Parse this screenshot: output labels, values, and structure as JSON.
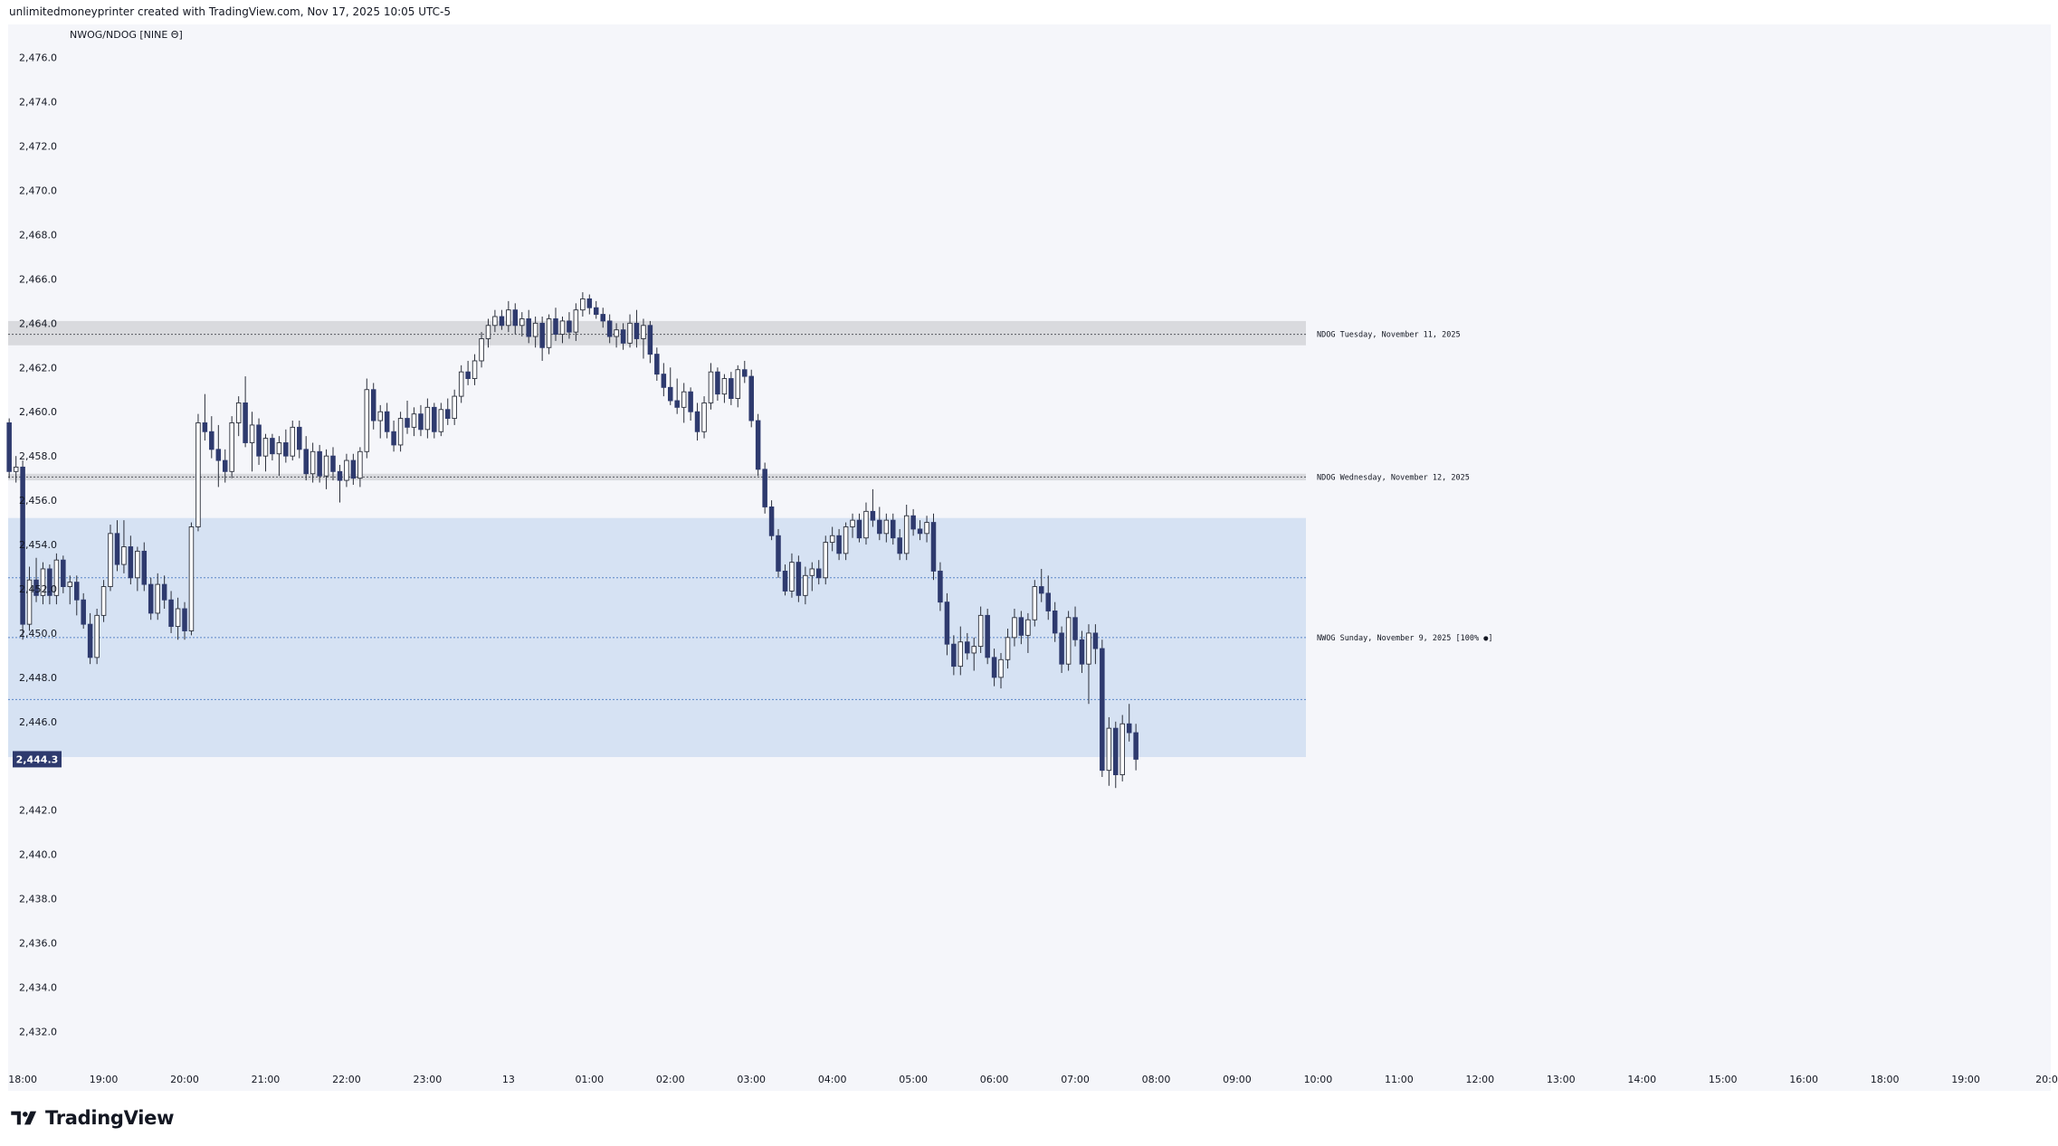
{
  "header": {
    "caption": "unlimitedmoneyprinter created with TradingView.com, Nov 17, 2025 10:05 UTC-5"
  },
  "footer": {
    "brand": "TradingView"
  },
  "colors": {
    "bear_body": "#2e3a6e",
    "bull_body": "#ffffff",
    "wick": "#2b2f3a",
    "zone_fill": "#d6e2f3",
    "gap_fill": "#d9dade",
    "level_line": "#5b86c8",
    "price_tag": "#2e3a6e"
  },
  "chart_data": {
    "type": "candlestick",
    "title": "NWOG/NDOG [NINE Θ]",
    "ylim": [
      2430.3,
      2477.5
    ],
    "y_ticks": [
      2476.0,
      2474.0,
      2472.0,
      2470.0,
      2468.0,
      2466.0,
      2464.0,
      2462.0,
      2460.0,
      2458.0,
      2456.0,
      2454.0,
      2452.0,
      2450.0,
      2448.0,
      2446.0,
      2442.0,
      2440.0,
      2438.0,
      2436.0,
      2434.0,
      2432.0
    ],
    "y_tick_labels": [
      "2,476.0",
      "2,474.0",
      "2,472.0",
      "2,470.0",
      "2,468.0",
      "2,466.0",
      "2,464.0",
      "2,462.0",
      "2,460.0",
      "2,458.0",
      "2,456.0",
      "2,454.0",
      "2,452.0",
      "2,450.0",
      "2,448.0",
      "2,446.0",
      "2,442.0",
      "2,440.0",
      "2,438.0",
      "2,436.0",
      "2,434.0",
      "2,432.0"
    ],
    "x_ticks": [
      0,
      1,
      2,
      3,
      4,
      5,
      6,
      7,
      8,
      9,
      10,
      11,
      12,
      13,
      14,
      15,
      16,
      17,
      18,
      19,
      20,
      21,
      22,
      23,
      24,
      25
    ],
    "x_tick_labels": [
      "18:00",
      "19:00",
      "20:00",
      "21:00",
      "22:00",
      "23:00",
      "13",
      "01:00",
      "02:00",
      "03:00",
      "04:00",
      "05:00",
      "06:00",
      "07:00",
      "08:00",
      "09:00",
      "10:00",
      "11:00",
      "12:00",
      "13:00",
      "14:00",
      "15:00",
      "16:00",
      "18:00",
      "19:00",
      "20:0"
    ],
    "x_range": [
      -0.18,
      25.05
    ],
    "candle_width_hours": 0.0833,
    "last_price": 2444.3,
    "last_price_label": "2,444.3",
    "zones": [
      {
        "kind": "gap",
        "label": "NDOG Tuesday, November 11, 2025",
        "top": 2464.1,
        "bottom": 2463.0,
        "mid": 2463.5,
        "x_start": -0.18,
        "x_end": 15.85
      },
      {
        "kind": "gap",
        "label": "NDOG Wednesday, November 12, 2025",
        "top": 2457.2,
        "bottom": 2456.9,
        "mid": 2457.05,
        "x_start": -0.18,
        "x_end": 15.85
      },
      {
        "kind": "weekly",
        "label": "NWOG Sunday, November 9, 2025 [100% ●]",
        "top": 2455.2,
        "bottom": 2444.4,
        "levels": [
          2452.5,
          2449.8,
          2447.0
        ],
        "x_start": -0.18,
        "x_end": 15.85
      }
    ],
    "candles": [
      [
        -0.167,
        2459.5,
        2459.7,
        2457.0,
        2457.3
      ],
      [
        -0.083,
        2457.3,
        2458.0,
        2456.8,
        2457.5
      ],
      [
        0.0,
        2457.5,
        2457.8,
        2449.7,
        2450.4
      ],
      [
        0.083,
        2450.4,
        2453.0,
        2450.1,
        2452.4
      ],
      [
        0.167,
        2452.4,
        2453.4,
        2451.4,
        2451.7
      ],
      [
        0.25,
        2451.7,
        2453.2,
        2451.3,
        2452.9
      ],
      [
        0.333,
        2452.9,
        2453.1,
        2451.3,
        2451.7
      ],
      [
        0.417,
        2451.7,
        2453.6,
        2451.3,
        2453.3
      ],
      [
        0.5,
        2453.3,
        2453.5,
        2451.8,
        2452.1
      ],
      [
        0.583,
        2452.1,
        2452.6,
        2451.3,
        2452.3
      ],
      [
        0.667,
        2452.3,
        2452.6,
        2450.8,
        2451.5
      ],
      [
        0.75,
        2451.5,
        2451.8,
        2450.2,
        2450.4
      ],
      [
        0.833,
        2450.4,
        2450.9,
        2448.6,
        2448.9
      ],
      [
        0.917,
        2448.9,
        2451.1,
        2448.6,
        2450.8
      ],
      [
        1.0,
        2450.8,
        2452.4,
        2450.5,
        2452.1
      ],
      [
        1.083,
        2452.1,
        2454.9,
        2451.9,
        2454.5
      ],
      [
        1.167,
        2454.5,
        2455.1,
        2452.8,
        2453.1
      ],
      [
        1.25,
        2453.1,
        2455.1,
        2452.7,
        2453.9
      ],
      [
        1.333,
        2453.9,
        2454.4,
        2452.2,
        2452.5
      ],
      [
        1.417,
        2452.5,
        2453.9,
        2451.9,
        2453.7
      ],
      [
        1.5,
        2453.7,
        2454.1,
        2451.9,
        2452.2
      ],
      [
        1.583,
        2452.2,
        2452.5,
        2450.6,
        2450.9
      ],
      [
        1.667,
        2450.9,
        2452.7,
        2450.6,
        2452.2
      ],
      [
        1.75,
        2452.2,
        2452.6,
        2451.1,
        2451.5
      ],
      [
        1.833,
        2451.5,
        2451.9,
        2450.0,
        2450.3
      ],
      [
        1.917,
        2450.3,
        2451.6,
        2449.7,
        2451.1
      ],
      [
        2.0,
        2451.1,
        2451.4,
        2449.7,
        2450.1
      ],
      [
        2.083,
        2450.1,
        2455.0,
        2449.9,
        2454.8
      ],
      [
        2.167,
        2454.8,
        2459.9,
        2454.6,
        2459.5
      ],
      [
        2.25,
        2459.5,
        2460.8,
        2458.7,
        2459.1
      ],
      [
        2.333,
        2459.1,
        2459.8,
        2457.9,
        2458.3
      ],
      [
        2.417,
        2458.3,
        2459.4,
        2456.6,
        2457.8
      ],
      [
        2.5,
        2457.8,
        2458.3,
        2456.8,
        2457.3
      ],
      [
        2.583,
        2457.3,
        2459.8,
        2457.0,
        2459.5
      ],
      [
        2.667,
        2459.5,
        2460.7,
        2458.9,
        2460.4
      ],
      [
        2.75,
        2460.4,
        2461.6,
        2458.4,
        2458.6
      ],
      [
        2.833,
        2458.6,
        2460.0,
        2457.3,
        2459.4
      ],
      [
        2.917,
        2459.4,
        2459.7,
        2457.6,
        2458.0
      ],
      [
        3.0,
        2458.0,
        2459.0,
        2457.3,
        2458.8
      ],
      [
        3.083,
        2458.8,
        2459.0,
        2457.8,
        2458.1
      ],
      [
        3.167,
        2458.1,
        2458.9,
        2457.1,
        2458.6
      ],
      [
        3.25,
        2458.6,
        2459.2,
        2457.7,
        2458.0
      ],
      [
        3.333,
        2458.0,
        2459.6,
        2457.8,
        2459.3
      ],
      [
        3.417,
        2459.3,
        2459.6,
        2457.9,
        2458.3
      ],
      [
        3.5,
        2458.3,
        2458.9,
        2456.9,
        2457.2
      ],
      [
        3.583,
        2457.2,
        2458.6,
        2456.8,
        2458.2
      ],
      [
        3.667,
        2458.2,
        2458.5,
        2456.8,
        2457.1
      ],
      [
        3.75,
        2457.1,
        2458.3,
        2456.5,
        2458.0
      ],
      [
        3.833,
        2458.0,
        2458.4,
        2456.9,
        2457.3
      ],
      [
        3.917,
        2457.3,
        2457.6,
        2455.9,
        2456.9
      ],
      [
        4.0,
        2456.9,
        2458.1,
        2456.6,
        2457.8
      ],
      [
        4.083,
        2457.8,
        2458.1,
        2456.7,
        2457.0
      ],
      [
        4.167,
        2457.0,
        2458.4,
        2456.6,
        2458.2
      ],
      [
        4.25,
        2458.2,
        2461.5,
        2457.9,
        2461.0
      ],
      [
        4.333,
        2461.0,
        2461.3,
        2459.2,
        2459.6
      ],
      [
        4.417,
        2459.6,
        2460.3,
        2458.8,
        2460.0
      ],
      [
        4.5,
        2460.0,
        2460.4,
        2458.8,
        2459.1
      ],
      [
        4.583,
        2459.1,
        2459.6,
        2458.2,
        2458.5
      ],
      [
        4.667,
        2458.5,
        2460.0,
        2458.2,
        2459.7
      ],
      [
        4.75,
        2459.7,
        2460.5,
        2459.0,
        2459.3
      ],
      [
        4.833,
        2459.3,
        2460.2,
        2458.9,
        2459.9
      ],
      [
        4.917,
        2459.9,
        2460.3,
        2458.9,
        2459.2
      ],
      [
        5.0,
        2459.2,
        2460.6,
        2458.8,
        2460.2
      ],
      [
        5.083,
        2460.2,
        2460.4,
        2458.8,
        2459.1
      ],
      [
        5.167,
        2459.1,
        2460.4,
        2458.9,
        2460.1
      ],
      [
        5.25,
        2460.1,
        2460.6,
        2459.4,
        2459.7
      ],
      [
        5.333,
        2459.7,
        2461.0,
        2459.4,
        2460.7
      ],
      [
        5.417,
        2460.7,
        2462.1,
        2460.4,
        2461.8
      ],
      [
        5.5,
        2461.8,
        2462.3,
        2461.2,
        2461.5
      ],
      [
        5.583,
        2461.5,
        2462.6,
        2461.2,
        2462.3
      ],
      [
        5.667,
        2462.3,
        2463.6,
        2462.0,
        2463.3
      ],
      [
        5.75,
        2463.3,
        2464.2,
        2462.9,
        2463.9
      ],
      [
        5.833,
        2463.9,
        2464.6,
        2463.6,
        2464.3
      ],
      [
        5.917,
        2464.3,
        2464.6,
        2463.7,
        2463.9
      ],
      [
        6.0,
        2463.9,
        2465.0,
        2463.6,
        2464.6
      ],
      [
        6.083,
        2464.6,
        2464.9,
        2463.5,
        2463.9
      ],
      [
        6.167,
        2463.9,
        2464.5,
        2463.4,
        2464.2
      ],
      [
        6.25,
        2464.2,
        2464.6,
        2463.1,
        2463.4
      ],
      [
        6.333,
        2463.4,
        2464.3,
        2462.9,
        2464.0
      ],
      [
        6.417,
        2464.0,
        2464.3,
        2462.3,
        2462.9
      ],
      [
        6.5,
        2462.9,
        2464.4,
        2462.6,
        2464.2
      ],
      [
        6.583,
        2464.2,
        2464.7,
        2463.2,
        2463.5
      ],
      [
        6.667,
        2463.5,
        2464.3,
        2463.1,
        2464.1
      ],
      [
        6.75,
        2464.1,
        2464.5,
        2463.3,
        2463.6
      ],
      [
        6.833,
        2463.6,
        2464.9,
        2463.2,
        2464.6
      ],
      [
        6.917,
        2464.6,
        2465.4,
        2464.3,
        2465.1
      ],
      [
        7.0,
        2465.1,
        2465.3,
        2464.4,
        2464.7
      ],
      [
        7.083,
        2464.7,
        2465.0,
        2464.2,
        2464.4
      ],
      [
        7.167,
        2464.4,
        2464.7,
        2463.8,
        2464.1
      ],
      [
        7.25,
        2464.1,
        2464.4,
        2463.1,
        2463.4
      ],
      [
        7.333,
        2463.4,
        2464.0,
        2462.9,
        2463.7
      ],
      [
        7.417,
        2463.7,
        2464.0,
        2462.8,
        2463.1
      ],
      [
        7.5,
        2463.1,
        2464.4,
        2462.9,
        2464.0
      ],
      [
        7.583,
        2464.0,
        2464.6,
        2462.9,
        2463.3
      ],
      [
        7.667,
        2463.3,
        2464.2,
        2462.4,
        2463.9
      ],
      [
        7.75,
        2463.9,
        2464.1,
        2462.2,
        2462.6
      ],
      [
        7.833,
        2462.6,
        2462.9,
        2461.4,
        2461.7
      ],
      [
        7.917,
        2461.7,
        2462.2,
        2460.7,
        2461.1
      ],
      [
        8.0,
        2461.1,
        2462.0,
        2460.3,
        2460.5
      ],
      [
        8.083,
        2460.5,
        2461.5,
        2459.9,
        2460.2
      ],
      [
        8.167,
        2460.2,
        2461.3,
        2459.5,
        2460.9
      ],
      [
        8.25,
        2460.9,
        2461.1,
        2459.6,
        2460.0
      ],
      [
        8.333,
        2460.0,
        2460.4,
        2458.7,
        2459.1
      ],
      [
        8.417,
        2459.1,
        2460.7,
        2458.8,
        2460.4
      ],
      [
        8.5,
        2460.4,
        2462.2,
        2460.1,
        2461.8
      ],
      [
        8.583,
        2461.8,
        2462.0,
        2460.5,
        2460.8
      ],
      [
        8.667,
        2460.8,
        2461.7,
        2460.4,
        2461.5
      ],
      [
        8.75,
        2461.5,
        2461.8,
        2460.3,
        2460.6
      ],
      [
        8.833,
        2460.6,
        2462.1,
        2460.2,
        2461.9
      ],
      [
        8.917,
        2461.9,
        2462.3,
        2461.3,
        2461.6
      ],
      [
        9.0,
        2461.6,
        2461.9,
        2459.3,
        2459.6
      ],
      [
        9.083,
        2459.6,
        2459.9,
        2457.1,
        2457.4
      ],
      [
        9.167,
        2457.4,
        2457.7,
        2455.4,
        2455.7
      ],
      [
        9.25,
        2455.7,
        2456.0,
        2454.2,
        2454.4
      ],
      [
        9.333,
        2454.4,
        2454.7,
        2452.5,
        2452.8
      ],
      [
        9.417,
        2452.8,
        2453.1,
        2451.7,
        2451.9
      ],
      [
        9.5,
        2451.9,
        2453.6,
        2451.6,
        2453.2
      ],
      [
        9.583,
        2453.2,
        2453.5,
        2451.4,
        2451.7
      ],
      [
        9.667,
        2451.7,
        2453.0,
        2451.3,
        2452.6
      ],
      [
        9.75,
        2452.6,
        2453.2,
        2451.9,
        2452.9
      ],
      [
        9.833,
        2452.9,
        2453.3,
        2452.2,
        2452.5
      ],
      [
        9.917,
        2452.5,
        2454.4,
        2452.2,
        2454.1
      ],
      [
        10.0,
        2454.1,
        2454.8,
        2453.7,
        2454.4
      ],
      [
        10.083,
        2454.4,
        2454.7,
        2453.3,
        2453.6
      ],
      [
        10.167,
        2453.6,
        2455.0,
        2453.3,
        2454.8
      ],
      [
        10.25,
        2454.8,
        2455.4,
        2454.3,
        2455.1
      ],
      [
        10.333,
        2455.1,
        2455.4,
        2454.1,
        2454.3
      ],
      [
        10.417,
        2454.3,
        2455.9,
        2454.0,
        2455.5
      ],
      [
        10.5,
        2455.5,
        2456.5,
        2454.8,
        2455.1
      ],
      [
        10.583,
        2455.1,
        2455.7,
        2454.2,
        2454.5
      ],
      [
        10.667,
        2454.5,
        2455.4,
        2454.1,
        2455.1
      ],
      [
        10.75,
        2455.1,
        2455.4,
        2454.0,
        2454.3
      ],
      [
        10.833,
        2454.3,
        2454.7,
        2453.3,
        2453.6
      ],
      [
        10.917,
        2453.6,
        2455.8,
        2453.3,
        2455.3
      ],
      [
        11.0,
        2455.3,
        2455.6,
        2454.4,
        2454.7
      ],
      [
        11.083,
        2454.7,
        2455.1,
        2454.2,
        2454.5
      ],
      [
        11.167,
        2454.5,
        2455.3,
        2454.1,
        2455.0
      ],
      [
        11.25,
        2455.0,
        2455.4,
        2452.4,
        2452.8
      ],
      [
        11.333,
        2452.8,
        2453.2,
        2451.0,
        2451.4
      ],
      [
        11.417,
        2451.4,
        2451.8,
        2449.0,
        2449.5
      ],
      [
        11.5,
        2449.5,
        2449.9,
        2448.1,
        2448.5
      ],
      [
        11.583,
        2448.5,
        2450.3,
        2448.1,
        2449.6
      ],
      [
        11.667,
        2449.6,
        2450.0,
        2448.8,
        2449.1
      ],
      [
        11.75,
        2449.1,
        2449.8,
        2448.3,
        2449.4
      ],
      [
        11.833,
        2449.4,
        2451.2,
        2449.1,
        2450.8
      ],
      [
        11.917,
        2450.8,
        2451.1,
        2448.6,
        2448.9
      ],
      [
        12.0,
        2448.9,
        2449.3,
        2447.6,
        2448.0
      ],
      [
        12.083,
        2448.0,
        2449.1,
        2447.5,
        2448.8
      ],
      [
        12.167,
        2448.8,
        2450.2,
        2448.4,
        2449.8
      ],
      [
        12.25,
        2449.8,
        2451.1,
        2449.4,
        2450.7
      ],
      [
        12.333,
        2450.7,
        2451.0,
        2449.5,
        2449.9
      ],
      [
        12.417,
        2449.9,
        2450.9,
        2449.1,
        2450.6
      ],
      [
        12.5,
        2450.6,
        2452.4,
        2450.3,
        2452.1
      ],
      [
        12.583,
        2452.1,
        2452.9,
        2451.4,
        2451.8
      ],
      [
        12.667,
        2451.8,
        2452.6,
        2450.6,
        2451.0
      ],
      [
        12.75,
        2451.0,
        2451.4,
        2449.6,
        2450.0
      ],
      [
        12.833,
        2450.0,
        2450.3,
        2448.2,
        2448.6
      ],
      [
        12.917,
        2448.6,
        2451.0,
        2448.3,
        2450.7
      ],
      [
        13.0,
        2450.7,
        2451.2,
        2449.4,
        2449.7
      ],
      [
        13.083,
        2449.7,
        2450.1,
        2448.2,
        2448.6
      ],
      [
        13.167,
        2448.6,
        2450.4,
        2446.8,
        2450.0
      ],
      [
        13.25,
        2450.0,
        2450.4,
        2448.6,
        2449.3
      ],
      [
        13.333,
        2449.3,
        2449.7,
        2443.5,
        2443.8
      ],
      [
        13.417,
        2443.8,
        2446.2,
        2443.1,
        2445.7
      ],
      [
        13.5,
        2445.7,
        2446.0,
        2443.0,
        2443.6
      ],
      [
        13.583,
        2443.6,
        2446.3,
        2443.3,
        2445.9
      ],
      [
        13.667,
        2445.9,
        2446.8,
        2445.1,
        2445.5
      ],
      [
        13.75,
        2445.5,
        2445.9,
        2443.8,
        2444.3
      ]
    ]
  }
}
